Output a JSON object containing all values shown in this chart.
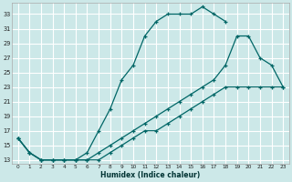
{
  "xlabel": "Humidex (Indice chaleur)",
  "bg_color": "#cce8e8",
  "grid_color": "#ffffff",
  "line_color": "#006666",
  "xlim": [
    -0.5,
    23.5
  ],
  "ylim": [
    12.5,
    34.5
  ],
  "xticks": [
    0,
    1,
    2,
    3,
    4,
    5,
    6,
    7,
    8,
    9,
    10,
    11,
    12,
    13,
    14,
    15,
    16,
    17,
    18,
    19,
    20,
    21,
    22,
    23
  ],
  "yticks": [
    13,
    15,
    17,
    19,
    21,
    23,
    25,
    27,
    29,
    31,
    33
  ],
  "curve1_x": [
    0,
    1,
    2,
    3,
    4,
    5,
    6,
    7,
    8,
    9,
    10,
    11,
    12,
    13,
    14,
    15,
    16,
    17,
    18
  ],
  "curve1_y": [
    16,
    14,
    13,
    13,
    13,
    13,
    14,
    17,
    20,
    24,
    26,
    30,
    32,
    33,
    33,
    33,
    34,
    33,
    32
  ],
  "curve2_x": [
    0,
    1,
    2,
    3,
    4,
    5,
    6,
    7,
    8,
    9,
    10,
    11,
    12,
    13,
    14,
    15,
    16,
    17,
    18,
    19,
    20,
    21,
    22,
    23
  ],
  "curve2_y": [
    16,
    14,
    13,
    13,
    13,
    13,
    13,
    14,
    15,
    16,
    17,
    18,
    19,
    20,
    21,
    22,
    23,
    24,
    26,
    30,
    30,
    27,
    26,
    23
  ],
  "curve3_x": [
    0,
    1,
    2,
    3,
    4,
    5,
    6,
    7,
    8,
    9,
    10,
    11,
    12,
    13,
    14,
    15,
    16,
    17,
    18,
    19,
    20,
    21,
    22,
    23
  ],
  "curve3_y": [
    16,
    14,
    13,
    13,
    13,
    13,
    13,
    13,
    14,
    15,
    16,
    17,
    17,
    18,
    19,
    20,
    21,
    22,
    23,
    23,
    23,
    23,
    23,
    23
  ]
}
